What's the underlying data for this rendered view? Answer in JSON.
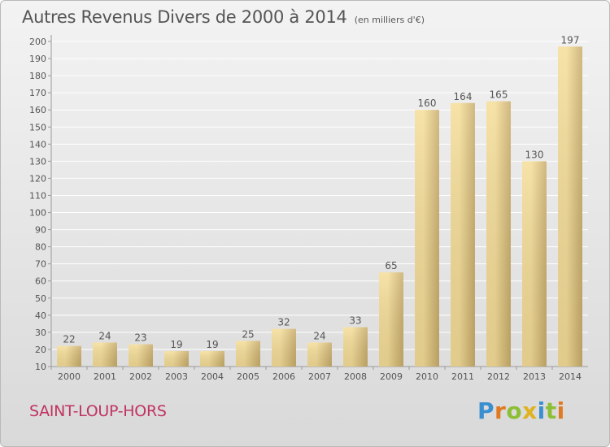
{
  "chart_data": {
    "type": "bar",
    "title": "Autres Revenus Divers de 2000 à 2014",
    "subtitle": "(en milliers d'€)",
    "categories": [
      "2000",
      "2001",
      "2002",
      "2003",
      "2004",
      "2005",
      "2006",
      "2007",
      "2008",
      "2009",
      "2010",
      "2011",
      "2012",
      "2013",
      "2014"
    ],
    "values": [
      22,
      24,
      23,
      19,
      19,
      25,
      32,
      24,
      33,
      65,
      160,
      164,
      165,
      130,
      197
    ],
    "ylim": [
      10,
      200
    ],
    "yticks": [
      10,
      20,
      30,
      40,
      50,
      60,
      70,
      80,
      90,
      100,
      110,
      120,
      130,
      140,
      150,
      160,
      170,
      180,
      190,
      200
    ],
    "grid": true,
    "colors": {
      "bar_light": "#f5dd98",
      "bar_dark": "#c8ac6a",
      "grid": "#ffffff",
      "axis": "#9a9a9a",
      "text": "#555555"
    }
  },
  "commune": "SAINT-LOUP-HORS",
  "logo": {
    "letters": [
      {
        "ch": "P",
        "color": "#3a8fd0"
      },
      {
        "ch": "r",
        "color": "#e07a22"
      },
      {
        "ch": "o",
        "color": "#8cbf35"
      },
      {
        "ch": "x",
        "color": "#e0b222"
      },
      {
        "ch": "i",
        "color": "#3a8fd0"
      },
      {
        "ch": "t",
        "color": "#8cbf35"
      },
      {
        "ch": "i",
        "color": "#e07a22"
      }
    ]
  }
}
